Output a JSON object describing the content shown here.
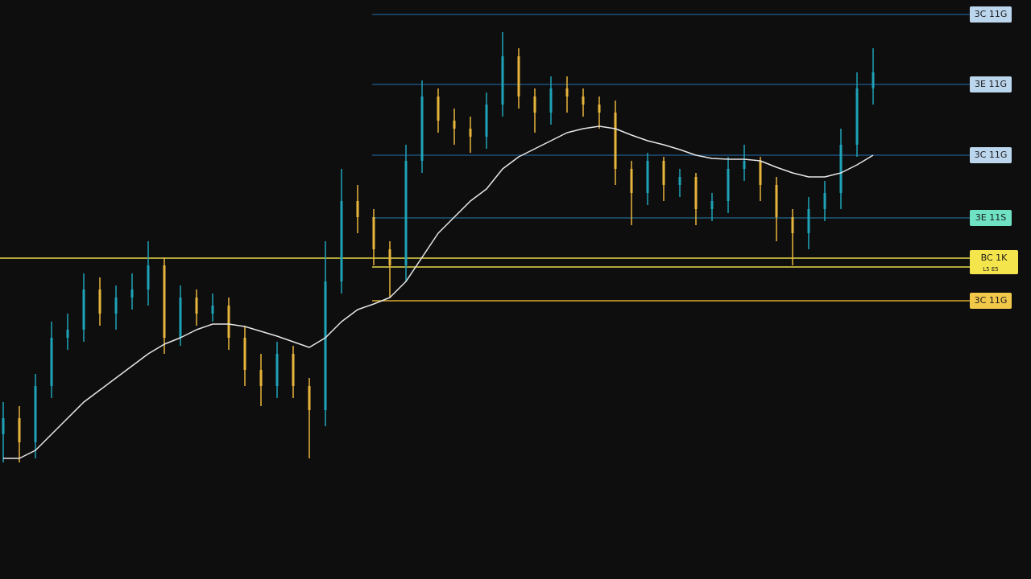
{
  "chart_data": {
    "type": "candlestick",
    "ylim": [
      0,
      720
    ],
    "series": [
      {
        "up_color": "#1fa3b8",
        "down_color": "#e8b53c",
        "open": [
          180,
          200,
          170,
          240,
          300,
          310,
          360,
          330,
          350,
          360,
          390,
          300,
          350,
          330,
          340,
          300,
          260,
          240,
          280,
          240,
          210,
          370,
          470,
          450,
          410,
          390,
          520,
          600,
          570,
          560,
          550,
          590,
          650,
          600,
          580,
          610,
          600,
          590,
          580,
          510,
          480,
          520,
          490,
          500,
          460,
          470,
          510,
          520,
          490,
          450,
          430,
          460,
          480,
          540,
          610
        ],
        "high": [
          220,
          215,
          255,
          320,
          330,
          380,
          375,
          365,
          380,
          420,
          400,
          365,
          360,
          355,
          350,
          315,
          280,
          295,
          290,
          250,
          420,
          510,
          490,
          460,
          420,
          540,
          620,
          610,
          585,
          575,
          605,
          680,
          660,
          610,
          625,
          625,
          610,
          600,
          595,
          520,
          530,
          525,
          510,
          505,
          480,
          525,
          540,
          525,
          500,
          460,
          475,
          495,
          560,
          630,
          660
        ],
        "low": [
          145,
          145,
          150,
          225,
          285,
          295,
          315,
          310,
          335,
          340,
          280,
          290,
          315,
          320,
          285,
          240,
          215,
          225,
          225,
          150,
          190,
          355,
          430,
          390,
          350,
          370,
          505,
          555,
          540,
          530,
          535,
          575,
          585,
          555,
          565,
          580,
          575,
          560,
          490,
          440,
          465,
          470,
          475,
          440,
          445,
          455,
          495,
          470,
          420,
          390,
          410,
          445,
          460,
          525,
          590
        ],
        "close": [
          200,
          170,
          240,
          300,
          310,
          360,
          330,
          350,
          360,
          390,
          300,
          350,
          330,
          340,
          300,
          260,
          240,
          280,
          240,
          210,
          370,
          470,
          450,
          410,
          390,
          520,
          600,
          570,
          560,
          550,
          590,
          650,
          600,
          580,
          610,
          600,
          590,
          580,
          510,
          480,
          520,
          490,
          500,
          460,
          470,
          510,
          520,
          490,
          450,
          430,
          460,
          480,
          540,
          610,
          630
        ]
      }
    ],
    "moving_average": {
      "color": "#e6e6e6",
      "values": [
        150,
        150,
        160,
        180,
        200,
        220,
        235,
        250,
        265,
        280,
        292,
        300,
        310,
        317,
        317,
        314,
        308,
        302,
        295,
        288,
        300,
        320,
        335,
        342,
        350,
        370,
        400,
        430,
        450,
        470,
        485,
        510,
        525,
        535,
        545,
        555,
        560,
        563,
        560,
        552,
        545,
        540,
        534,
        527,
        523,
        522,
        522,
        520,
        512,
        505,
        500,
        500,
        505,
        515,
        527
      ]
    },
    "levels": [
      {
        "label": "3C 11G",
        "value": 702,
        "color": "#1f4f78",
        "label_color": "#bcd6ee"
      },
      {
        "label": "3E 11G",
        "value": 615,
        "color": "#1f4f78",
        "label_color": "#bcd6ee"
      },
      {
        "label": "3C 11G",
        "value": 527,
        "color": "#1f4f78",
        "label_color": "#bcd6ee"
      },
      {
        "label": "3E 11S",
        "value": 449,
        "color": "#1f5a78",
        "label_color": "#6fe2c4"
      },
      {
        "label": "BC 1K",
        "value": 399,
        "color": "#e8d84a",
        "label_color": "#f4e54c",
        "extend_left": true
      },
      {
        "label": "L5 E5",
        "value": 388,
        "color": "#e8d84a",
        "label_color": "#f4e54c"
      },
      {
        "label": "3C 11G",
        "value": 346,
        "color": "#d9a830",
        "label_color": "#f2c84a"
      }
    ]
  }
}
